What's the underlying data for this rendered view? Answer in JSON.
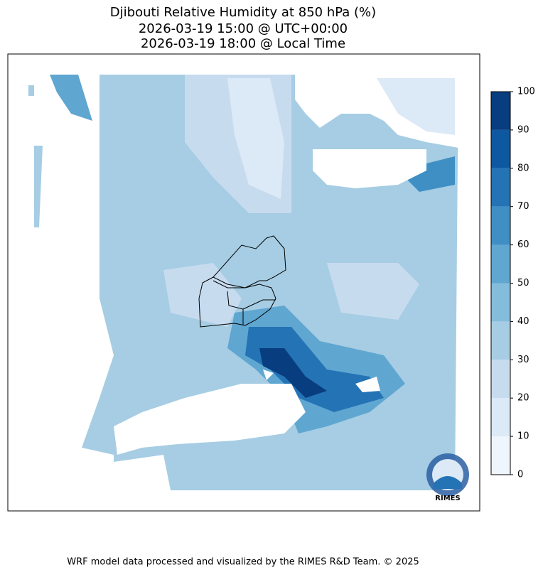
{
  "title": [
    "Djibouti Relative Humidity at 850 hPa (%)",
    "2026-03-19 15:00 @ UTC+00:00",
    "2026-03-19 18:00 @ Local Time"
  ],
  "colorbar": {
    "ticks": [
      0,
      10,
      20,
      30,
      40,
      50,
      60,
      70,
      80,
      90,
      100
    ],
    "colors": [
      "#eef5fc",
      "#dce9f6",
      "#c7dbef",
      "#a6cde3",
      "#84bcdb",
      "#5fa6d1",
      "#3f8fc5",
      "#2473b5",
      "#0e58a2",
      "#083d7f"
    ]
  },
  "logo": "RIMES",
  "footer": "WRF model data processed and visualized by the RIMES R&D Team. © 2025"
}
